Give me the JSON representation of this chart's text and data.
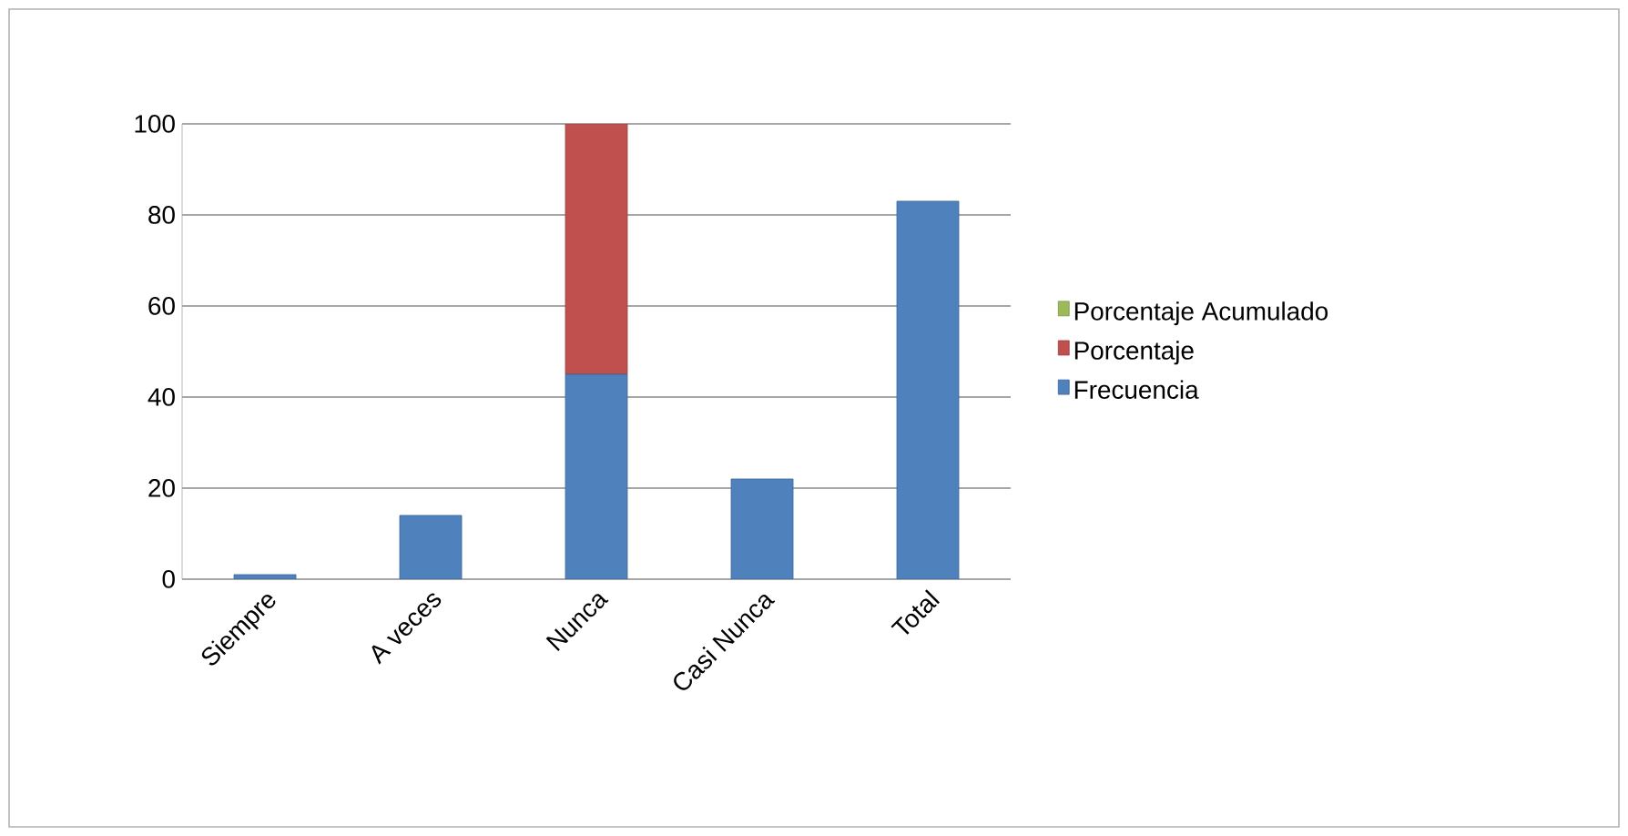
{
  "chart_data": {
    "type": "bar",
    "stacked": true,
    "categories": [
      "Siempre",
      "A veces",
      "Nunca",
      "Casi Nunca",
      "Total"
    ],
    "series": [
      {
        "name": "Frecuencia",
        "color": "#4f81bd",
        "values": [
          1,
          14,
          45,
          22,
          83
        ]
      },
      {
        "name": "Porcentaje",
        "color": "#c0504d",
        "values": [
          0,
          0,
          55,
          0,
          0
        ]
      },
      {
        "name": "Porcentaje Acumulado",
        "color": "#9bbb59",
        "values": [
          0,
          0,
          0,
          0,
          0
        ]
      }
    ],
    "ylim": [
      0,
      100
    ],
    "yticks": [
      0,
      20,
      40,
      60,
      80,
      100
    ],
    "grid": "y",
    "legend": "right"
  }
}
